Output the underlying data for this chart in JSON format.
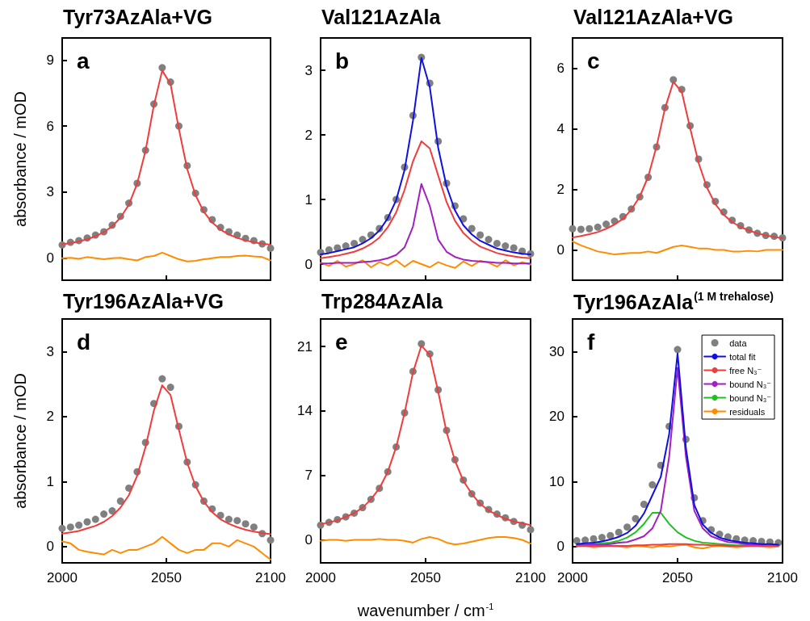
{
  "chart_data": [
    {
      "type": "line",
      "title": "Tyr73AzAla+VG",
      "ylabel": "absorbance / mOD",
      "annotations": [
        "a"
      ],
      "xlim": [
        2000,
        2100
      ],
      "xticks": [
        2000,
        2050,
        2100
      ],
      "ylim": [
        -1,
        10
      ],
      "yticks": [
        0,
        3,
        6,
        9
      ],
      "tick_labels": "y",
      "marker": "none",
      "x": [
        2000,
        2004,
        2008,
        2012,
        2016,
        2020,
        2024,
        2028,
        2032,
        2036,
        2040,
        2044,
        2048,
        2052,
        2056,
        2060,
        2064,
        2068,
        2072,
        2076,
        2080,
        2084,
        2088,
        2092,
        2096,
        2100
      ],
      "series": [
        {
          "type": "scatter",
          "marker": "circle",
          "color": "#808080",
          "values": [
            0.6,
            0.72,
            0.8,
            0.92,
            1.05,
            1.2,
            1.5,
            1.9,
            2.5,
            3.4,
            4.9,
            7.0,
            8.65,
            8.0,
            6.0,
            4.2,
            2.95,
            2.2,
            1.75,
            1.4,
            1.2,
            1.05,
            0.9,
            0.8,
            0.65,
            0.45
          ]
        },
        {
          "color": "#f03c3c",
          "values": [
            0.63,
            0.69,
            0.76,
            0.86,
            1.0,
            1.18,
            1.45,
            1.84,
            2.43,
            3.39,
            4.88,
            6.94,
            8.52,
            7.91,
            5.87,
            4.05,
            2.86,
            2.1,
            1.62,
            1.3,
            1.08,
            0.92,
            0.81,
            0.72,
            0.66,
            0.61
          ]
        },
        {
          "color": "#ff8c00",
          "values": [
            0,
            0.02,
            -0.03,
            0.05,
            0,
            -0.05,
            0,
            0.02,
            -0.05,
            -0.1,
            0.05,
            0.1,
            0.25,
            0.1,
            -0.05,
            -0.15,
            -0.12,
            -0.05,
            0,
            0.05,
            0.05,
            0.1,
            0.12,
            0.08,
            0.05,
            -0.1
          ]
        }
      ]
    },
    {
      "type": "line",
      "title": "Val121AzAla",
      "annotations": [
        "b"
      ],
      "xlim": [
        2000,
        2100
      ],
      "xticks": [
        2000,
        2050,
        2100
      ],
      "ylim": [
        -0.25,
        3.5
      ],
      "yticks": [
        0,
        1,
        2,
        3
      ],
      "tick_labels": "y",
      "marker": "none",
      "x": [
        2000,
        2004,
        2008,
        2012,
        2016,
        2020,
        2024,
        2028,
        2032,
        2036,
        2040,
        2044,
        2048,
        2052,
        2056,
        2060,
        2064,
        2068,
        2072,
        2076,
        2080,
        2084,
        2088,
        2092,
        2096,
        2100
      ],
      "series": [
        {
          "type": "scatter",
          "marker": "circle",
          "color": "#808080",
          "values": [
            0.18,
            0.22,
            0.25,
            0.28,
            0.32,
            0.38,
            0.45,
            0.55,
            0.72,
            1.0,
            1.5,
            2.3,
            3.2,
            2.8,
            1.9,
            1.25,
            0.9,
            0.7,
            0.55,
            0.45,
            0.38,
            0.32,
            0.28,
            0.25,
            0.2,
            0.16
          ]
        },
        {
          "color": "#f03c3c",
          "values": [
            0.09,
            0.11,
            0.13,
            0.16,
            0.19,
            0.24,
            0.31,
            0.41,
            0.57,
            0.8,
            1.15,
            1.59,
            1.9,
            1.79,
            1.37,
            0.96,
            0.67,
            0.48,
            0.36,
            0.27,
            0.22,
            0.17,
            0.14,
            0.12,
            0.1,
            0.09
          ]
        },
        {
          "color": "#a020c0",
          "values": [
            0.01,
            0.01,
            0.02,
            0.02,
            0.02,
            0.03,
            0.04,
            0.06,
            0.09,
            0.14,
            0.26,
            0.58,
            1.24,
            0.9,
            0.38,
            0.19,
            0.11,
            0.07,
            0.05,
            0.04,
            0.03,
            0.02,
            0.02,
            0.01,
            0.01,
            0.01
          ]
        },
        {
          "color": "#1010e0",
          "values": [
            0.15,
            0.17,
            0.2,
            0.23,
            0.26,
            0.32,
            0.4,
            0.52,
            0.71,
            0.99,
            1.46,
            2.22,
            3.19,
            2.74,
            1.8,
            1.2,
            0.83,
            0.6,
            0.46,
            0.36,
            0.3,
            0.24,
            0.21,
            0.18,
            0.16,
            0.15
          ]
        },
        {
          "color": "#ff8c00",
          "values": [
            0.02,
            -0.03,
            0.05,
            -0.04,
            0,
            0.06,
            -0.05,
            0.03,
            -0.02,
            0.06,
            -0.04,
            0.05,
            0,
            -0.05,
            0.03,
            -0.02,
            -0.06,
            0.04,
            -0.03,
            0.05,
            0.02,
            -0.04,
            0.06,
            -0.02,
            0.03,
            -0.01
          ]
        }
      ]
    },
    {
      "type": "line",
      "title": "Val121AzAla+VG",
      "annotations": [
        "c"
      ],
      "xlim": [
        2000,
        2100
      ],
      "xticks": [
        2000,
        2050,
        2100
      ],
      "ylim": [
        -1,
        7
      ],
      "yticks": [
        0,
        2,
        4,
        6
      ],
      "tick_labels": "y",
      "marker": "none",
      "x": [
        2000,
        2004,
        2008,
        2012,
        2016,
        2020,
        2024,
        2028,
        2032,
        2036,
        2040,
        2044,
        2048,
        2052,
        2056,
        2060,
        2064,
        2068,
        2072,
        2076,
        2080,
        2084,
        2088,
        2092,
        2096,
        2100
      ],
      "series": [
        {
          "type": "scatter",
          "marker": "circle",
          "color": "#808080",
          "values": [
            0.7,
            0.68,
            0.7,
            0.75,
            0.85,
            0.95,
            1.1,
            1.35,
            1.75,
            2.4,
            3.4,
            4.7,
            5.62,
            5.3,
            4.1,
            3.0,
            2.15,
            1.6,
            1.25,
            0.98,
            0.8,
            0.66,
            0.55,
            0.48,
            0.45,
            0.4
          ]
        },
        {
          "color": "#f03c3c",
          "values": [
            0.41,
            0.46,
            0.52,
            0.59,
            0.7,
            0.84,
            1.03,
            1.33,
            1.76,
            2.42,
            3.42,
            4.67,
            5.55,
            5.22,
            4.02,
            2.88,
            2.06,
            1.51,
            1.16,
            0.92,
            0.76,
            0.64,
            0.55,
            0.48,
            0.43,
            0.39
          ]
        },
        {
          "color": "#ff8c00",
          "values": [
            0.28,
            0.15,
            0.05,
            -0.05,
            -0.1,
            -0.15,
            -0.12,
            -0.1,
            -0.1,
            -0.05,
            -0.1,
            0,
            0.1,
            0.15,
            0.1,
            0.05,
            0.05,
            0,
            0,
            -0.05,
            -0.05,
            -0.03,
            -0.05,
            0,
            0,
            0
          ]
        }
      ]
    },
    {
      "type": "line",
      "title": "Tyr196AzAla+VG",
      "ylabel": "absorbance / mOD",
      "annotations": [
        "d"
      ],
      "xlim": [
        2000,
        2100
      ],
      "xticks": [
        2000,
        2050,
        2100
      ],
      "ylim": [
        -0.25,
        3.5
      ],
      "yticks": [
        0,
        1,
        2,
        3
      ],
      "marker": "none",
      "x": [
        2000,
        2004,
        2008,
        2012,
        2016,
        2020,
        2024,
        2028,
        2032,
        2036,
        2040,
        2044,
        2048,
        2052,
        2056,
        2060,
        2064,
        2068,
        2072,
        2076,
        2080,
        2084,
        2088,
        2092,
        2096,
        2100
      ],
      "series": [
        {
          "type": "scatter",
          "marker": "circle",
          "color": "#808080",
          "values": [
            0.28,
            0.3,
            0.33,
            0.38,
            0.42,
            0.5,
            0.55,
            0.7,
            0.9,
            1.15,
            1.6,
            2.2,
            2.58,
            2.45,
            1.85,
            1.3,
            0.95,
            0.7,
            0.58,
            0.48,
            0.42,
            0.4,
            0.35,
            0.3,
            0.2,
            0.1
          ]
        },
        {
          "color": "#f03c3c",
          "values": [
            0.2,
            0.22,
            0.24,
            0.28,
            0.32,
            0.38,
            0.47,
            0.6,
            0.79,
            1.09,
            1.53,
            2.09,
            2.48,
            2.33,
            1.8,
            1.29,
            0.93,
            0.69,
            0.53,
            0.42,
            0.35,
            0.3,
            0.26,
            0.23,
            0.21,
            0.19
          ]
        },
        {
          "color": "#ff8c00",
          "values": [
            0.08,
            0.05,
            -0.05,
            -0.08,
            -0.1,
            -0.12,
            -0.05,
            -0.1,
            -0.05,
            -0.05,
            0,
            0.05,
            0.15,
            0.05,
            -0.05,
            -0.1,
            -0.05,
            -0.05,
            0.05,
            0.05,
            0,
            0.1,
            0.05,
            0,
            -0.1,
            -0.2
          ]
        }
      ]
    },
    {
      "type": "line",
      "title": "Trp284AzAla",
      "xlabel": "wavenumber / cm$^{-1}$",
      "annotations": [
        "e"
      ],
      "xlim": [
        2000,
        2100
      ],
      "xticks": [
        2000,
        2050,
        2100
      ],
      "ylim": [
        -2.5,
        24
      ],
      "yticks": [
        0,
        7,
        14,
        21
      ],
      "marker": "none",
      "x": [
        2000,
        2004,
        2008,
        2012,
        2016,
        2020,
        2024,
        2028,
        2032,
        2036,
        2040,
        2044,
        2048,
        2052,
        2056,
        2060,
        2064,
        2068,
        2072,
        2076,
        2080,
        2084,
        2088,
        2092,
        2096,
        2100
      ],
      "series": [
        {
          "type": "scatter",
          "marker": "circle",
          "color": "#808080",
          "values": [
            1.6,
            1.9,
            2.2,
            2.5,
            2.9,
            3.5,
            4.4,
            5.6,
            7.4,
            10.1,
            13.8,
            18.3,
            21.3,
            20.2,
            16.3,
            11.9,
            8.7,
            6.5,
            5.0,
            4.0,
            3.3,
            2.8,
            2.4,
            2.0,
            1.6,
            1.1
          ]
        },
        {
          "color": "#f03c3c",
          "values": [
            1.7,
            1.9,
            2.1,
            2.5,
            2.9,
            3.5,
            4.4,
            5.6,
            7.4,
            10.1,
            13.8,
            18.2,
            21.1,
            20.1,
            16.1,
            11.7,
            8.6,
            6.4,
            5.0,
            3.9,
            3.2,
            2.7,
            2.3,
            2.0,
            1.8,
            1.6
          ]
        },
        {
          "color": "#ff8c00",
          "values": [
            -0.1,
            0,
            0,
            -0.1,
            0,
            0,
            0,
            0.1,
            0,
            0,
            -0.1,
            -0.3,
            0.1,
            0.3,
            0.1,
            -0.3,
            -0.5,
            -0.4,
            -0.2,
            0,
            0.2,
            0.3,
            0.3,
            0.2,
            0,
            -0.4
          ]
        }
      ]
    },
    {
      "type": "line",
      "title": "Tyr196AzAla$^{(1 M trehalose)}$",
      "annotations": [
        "f"
      ],
      "xlim": [
        2000,
        2100
      ],
      "xticks": [
        2000,
        2050,
        2100
      ],
      "ylim": [
        -2.5,
        35
      ],
      "yticks": [
        0,
        10,
        20,
        30
      ],
      "marker": "none",
      "legend": "top right",
      "x": [
        2002,
        2006,
        2010,
        2014,
        2018,
        2022,
        2026,
        2030,
        2034,
        2038,
        2042,
        2046,
        2050,
        2054,
        2058,
        2062,
        2066,
        2070,
        2074,
        2078,
        2082,
        2086,
        2090,
        2094,
        2098
      ],
      "series": [
        {
          "name": "data",
          "type": "scatter",
          "marker": "circle",
          "color": "#808080",
          "values": [
            0.9,
            1.0,
            1.2,
            1.4,
            1.7,
            2.2,
            3.0,
            4.3,
            6.5,
            9.5,
            12.5,
            18.5,
            30.3,
            16.5,
            7.5,
            4.0,
            2.6,
            1.9,
            1.5,
            1.2,
            1.0,
            0.9,
            0.8,
            0.7,
            0.6
          ]
        },
        {
          "name": "total fit",
          "color": "#1010e0",
          "values": [
            0.4,
            0.5,
            0.6,
            0.8,
            1.1,
            1.5,
            2.1,
            3.2,
            5.1,
            7.9,
            10.7,
            17.3,
            29.7,
            15.1,
            6.4,
            3.4,
            2.1,
            1.4,
            1.0,
            0.8,
            0.6,
            0.5,
            0.4,
            0.4,
            0.3
          ]
        },
        {
          "name": "free N₃⁻",
          "color": "#f03c3c",
          "values": [
            0.1,
            0.1,
            0.1,
            0.1,
            0.1,
            0.1,
            0.1,
            0.2,
            0.2,
            0.3,
            0.3,
            0.4,
            0.4,
            0.4,
            0.3,
            0.3,
            0.2,
            0.2,
            0.1,
            0.1,
            0.1,
            0.1,
            0.1,
            0.1,
            0.1
          ]
        },
        {
          "name": "bound N₃⁻",
          "color": "#a020c0",
          "values": [
            0.2,
            0.2,
            0.3,
            0.3,
            0.4,
            0.6,
            0.7,
            1.1,
            1.6,
            2.8,
            5.5,
            13.8,
            27.5,
            13.8,
            5.5,
            2.8,
            1.6,
            1.1,
            0.7,
            0.6,
            0.4,
            0.3,
            0.3,
            0.2,
            0.2
          ]
        },
        {
          "name": "bound N₃⁻",
          "color": "#20c020",
          "values": [
            0.2,
            0.3,
            0.4,
            0.5,
            0.6,
            0.9,
            1.4,
            2.2,
            3.5,
            5.2,
            5.2,
            3.5,
            2.2,
            1.4,
            0.9,
            0.6,
            0.5,
            0.4,
            0.3,
            0.2,
            0.2,
            0.2,
            null,
            null,
            null
          ]
        },
        {
          "name": "residuals",
          "color": "#ff8c00",
          "values": [
            0,
            0.1,
            -0.1,
            0,
            0.1,
            0,
            -0.1,
            0.1,
            0,
            -0.1,
            0.1,
            0,
            0.2,
            0.3,
            -0.1,
            -0.3,
            0,
            0.1,
            0,
            -0.1,
            0,
            0.1,
            0,
            -0.1,
            0
          ]
        }
      ]
    }
  ]
}
